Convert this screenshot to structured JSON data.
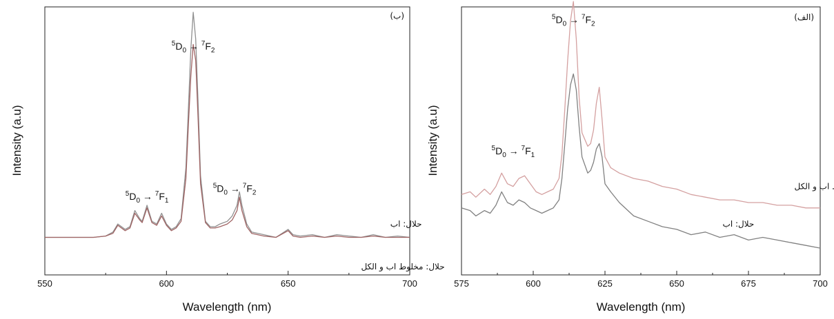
{
  "chart_data": [
    {
      "type": "line",
      "panel_label": "(ب)",
      "xlabel": "Wavelength (nm)",
      "ylabel": "Intensity (a.u)",
      "xlim": [
        550,
        700
      ],
      "ylim": [
        0,
        100
      ],
      "xticks": [
        550,
        600,
        650,
        700
      ],
      "annotations": [
        {
          "x": 611,
          "y": 84,
          "parts": [
            {
              "t": "5",
              "sup": true
            },
            {
              "t": "D"
            },
            {
              "t": "0",
              "sub": true
            },
            {
              "t": " → "
            },
            {
              "t": "7",
              "sup": true
            },
            {
              "t": "F"
            },
            {
              "t": "2",
              "sub": true
            }
          ]
        },
        {
          "x": 592,
          "y": 28,
          "parts": [
            {
              "t": "5",
              "sup": true
            },
            {
              "t": "D"
            },
            {
              "t": "0",
              "sub": true
            },
            {
              "t": " → "
            },
            {
              "t": "7",
              "sup": true
            },
            {
              "t": "F"
            },
            {
              "t": "1",
              "sub": true
            }
          ]
        },
        {
          "x": 628,
          "y": 31,
          "parts": [
            {
              "t": "5",
              "sup": true
            },
            {
              "t": "D"
            },
            {
              "t": "0",
              "sub": true
            },
            {
              "t": " → "
            },
            {
              "t": "7",
              "sup": true
            },
            {
              "t": "F"
            },
            {
              "t": "2",
              "sub": true
            }
          ]
        }
      ],
      "series": [
        {
          "name": "حلال: اب",
          "color": "#8f8f8f",
          "label_pos": {
            "x": 692,
            "y": 18
          },
          "x": [
            550,
            560,
            570,
            575,
            578,
            580,
            583,
            585,
            587,
            589,
            590,
            592,
            594,
            596,
            598,
            600,
            602,
            604,
            606,
            608,
            609,
            610,
            611,
            612,
            613,
            614,
            616,
            618,
            620,
            622,
            625,
            627,
            629,
            630,
            631,
            633,
            635,
            640,
            645,
            650,
            652,
            655,
            660,
            665,
            670,
            675,
            680,
            685,
            690,
            695,
            700
          ],
          "y": [
            14,
            14,
            14,
            14.5,
            16,
            19,
            17,
            18,
            24,
            21,
            20,
            26,
            20,
            19,
            23,
            19,
            17,
            18,
            21,
            40,
            62,
            84,
            98,
            88,
            64,
            37,
            20,
            18,
            18,
            19,
            20,
            22,
            26,
            31,
            26,
            19,
            16,
            15,
            14,
            17,
            15,
            14.5,
            15,
            14,
            15,
            14.5,
            14,
            15,
            14,
            14.5,
            14
          ]
        },
        {
          "name": "حلال: مخلوط اب و الکل",
          "color": "#a06464",
          "label_pos": {
            "x": 680,
            "y": 2
          },
          "x": [
            550,
            560,
            570,
            575,
            578,
            580,
            583,
            585,
            587,
            589,
            590,
            592,
            594,
            596,
            598,
            600,
            602,
            604,
            606,
            608,
            609,
            610,
            611,
            612,
            613,
            614,
            616,
            618,
            620,
            622,
            625,
            627,
            629,
            630,
            631,
            633,
            635,
            640,
            645,
            650,
            652,
            655,
            660,
            665,
            670,
            675,
            680,
            685,
            690,
            695,
            700
          ],
          "y": [
            14,
            14,
            14,
            14.5,
            15.5,
            18.5,
            16.5,
            17.5,
            23,
            20.5,
            19.5,
            25,
            19.5,
            18.5,
            22,
            18.5,
            16.5,
            17.5,
            20,
            36,
            56,
            74,
            86,
            80,
            58,
            34,
            19.5,
            17.5,
            17.5,
            18,
            19,
            20.5,
            24,
            29,
            24,
            18,
            15.5,
            14.5,
            14,
            16.5,
            14.5,
            14,
            14.5,
            14,
            14.5,
            14,
            14,
            14.5,
            14,
            14,
            14
          ]
        }
      ]
    },
    {
      "type": "line",
      "panel_label": "(الف)",
      "xlabel": "Wavelength (nm)",
      "ylabel": "Intensity (a.u)",
      "xlim": [
        575,
        700
      ],
      "ylim": [
        0,
        100
      ],
      "xticks": [
        575,
        600,
        625,
        650,
        675,
        700
      ],
      "annotations": [
        {
          "x": 614,
          "y": 94,
          "parts": [
            {
              "t": "5",
              "sup": true
            },
            {
              "t": "D"
            },
            {
              "t": "0",
              "sub": true
            },
            {
              "t": " → "
            },
            {
              "t": "7",
              "sup": true
            },
            {
              "t": "F"
            },
            {
              "t": "2",
              "sub": true
            }
          ]
        },
        {
          "x": 593,
          "y": 45,
          "parts": [
            {
              "t": "5",
              "sup": true
            },
            {
              "t": "D"
            },
            {
              "t": "0",
              "sub": true
            },
            {
              "t": " → "
            },
            {
              "t": "7",
              "sup": true
            },
            {
              "t": "F"
            },
            {
              "t": "1",
              "sub": true
            }
          ]
        }
      ],
      "series": [
        {
          "name": "حلال: مخلوط اب و الکل",
          "color": "#d4a0a0",
          "label_pos": {
            "x": 691,
            "y": 32
          },
          "x": [
            575,
            578,
            580,
            583,
            585,
            587,
            589,
            591,
            593,
            595,
            597,
            599,
            601,
            603,
            605,
            607,
            609,
            610,
            611,
            612,
            613,
            614,
            615,
            616,
            617,
            619,
            620,
            621,
            622,
            623,
            624,
            625,
            627,
            630,
            635,
            640,
            645,
            650,
            655,
            660,
            665,
            670,
            675,
            680,
            685,
            690,
            695,
            700
          ],
          "y": [
            30,
            31,
            29,
            32,
            30,
            33,
            38,
            34,
            33,
            36,
            37,
            34,
            31,
            30,
            31,
            32,
            36,
            45,
            62,
            80,
            95,
            102,
            88,
            66,
            53,
            48,
            49,
            54,
            64,
            70,
            58,
            44,
            40,
            38,
            36,
            35,
            33,
            32,
            30,
            29,
            28,
            28,
            27,
            27,
            26,
            26,
            25,
            25
          ]
        },
        {
          "name": "حلال: اب",
          "color": "#808080",
          "label_pos": {
            "x": 666,
            "y": 18
          },
          "x": [
            575,
            578,
            580,
            583,
            585,
            587,
            589,
            591,
            593,
            595,
            597,
            599,
            601,
            603,
            605,
            607,
            609,
            610,
            611,
            612,
            613,
            614,
            615,
            616,
            617,
            619,
            620,
            621,
            622,
            623,
            624,
            625,
            627,
            630,
            635,
            640,
            645,
            650,
            655,
            660,
            665,
            670,
            675,
            680,
            685,
            690,
            695,
            700
          ],
          "y": [
            25,
            24,
            22,
            24,
            23,
            26,
            31,
            27,
            26,
            28,
            27,
            25,
            24,
            23,
            24,
            25,
            28,
            36,
            49,
            62,
            71,
            75,
            69,
            55,
            44,
            38,
            39,
            42,
            47,
            49,
            44,
            34,
            31,
            27,
            22,
            20,
            18,
            17,
            15,
            16,
            14,
            15,
            13,
            14,
            13,
            12,
            11,
            10
          ]
        }
      ]
    }
  ]
}
